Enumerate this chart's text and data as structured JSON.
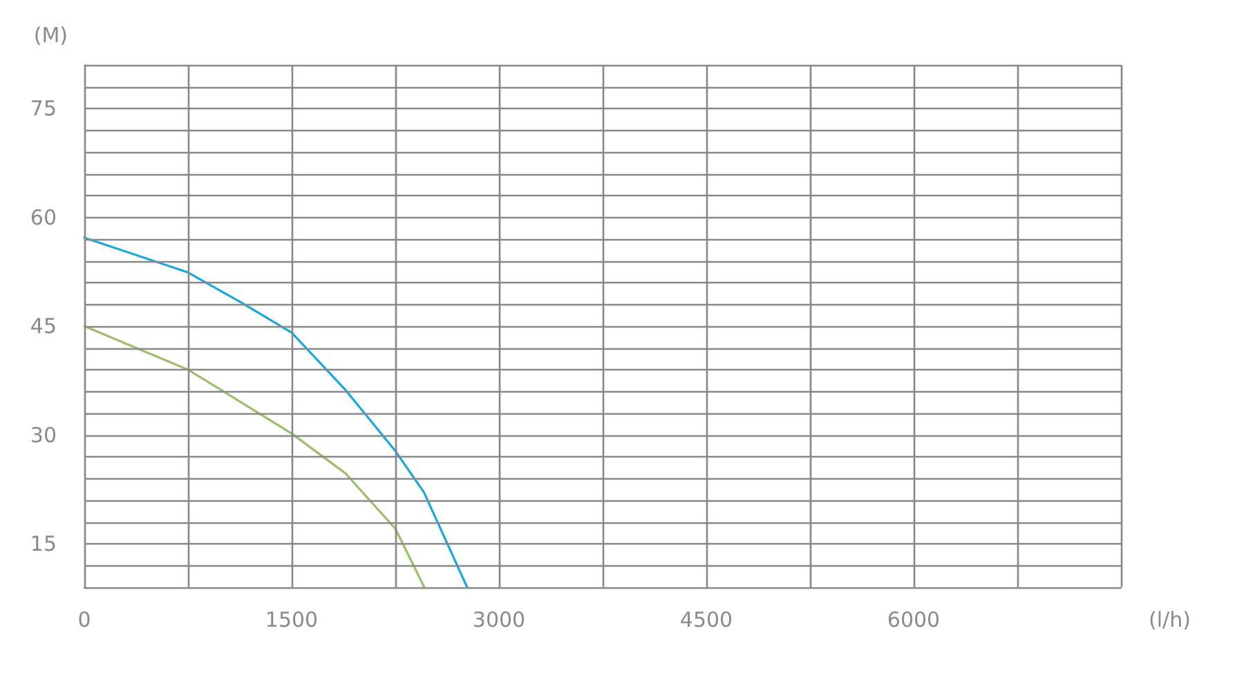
{
  "chart_data": {
    "type": "line",
    "xlabel": "(l/h)",
    "ylabel": "(M)",
    "xlim": [
      0,
      7500
    ],
    "ylim": [
      9,
      81
    ],
    "xticks": [
      0,
      {
        "value": 750,
        "label": null
      },
      1500,
      {
        "value": 2250,
        "label": null
      },
      3000,
      {
        "value": 3750,
        "label": null
      },
      4500,
      {
        "value": 5250,
        "label": null
      },
      6000,
      {
        "value": 6750,
        "label": null
      },
      {
        "value": 7500,
        "label": null
      }
    ],
    "yticks": [
      {
        "value": 9,
        "label": null
      },
      {
        "value": 12,
        "label": null
      },
      15,
      {
        "value": 18,
        "label": null
      },
      {
        "value": 21,
        "label": null
      },
      {
        "value": 24,
        "label": null
      },
      {
        "value": 27,
        "label": null
      },
      30,
      {
        "value": 33,
        "label": null
      },
      {
        "value": 36,
        "label": null
      },
      {
        "value": 39,
        "label": null
      },
      {
        "value": 42,
        "label": null
      },
      45,
      {
        "value": 48,
        "label": null
      },
      {
        "value": 51,
        "label": null
      },
      {
        "value": 54,
        "label": null
      },
      {
        "value": 57,
        "label": null
      },
      60,
      {
        "value": 63,
        "label": null
      },
      {
        "value": 66,
        "label": null
      },
      {
        "value": 69,
        "label": null
      },
      {
        "value": 72,
        "label": null
      },
      75,
      {
        "value": 78,
        "label": null
      },
      {
        "value": 81,
        "label": null
      }
    ],
    "grid": true,
    "marker": "none",
    "line_style": "solid",
    "series": [
      {
        "color": "#9bbf6b",
        "x": [
          0,
          750,
          990,
          1500,
          1890,
          2250,
          2460
        ],
        "values": [
          45.0,
          39.0,
          36.2,
          30.2,
          24.7,
          17.1,
          9
        ]
      },
      {
        "color": "#1aa7e0",
        "x": [
          0,
          750,
          1140,
          1500,
          1890,
          2250,
          2457,
          2770
        ],
        "values": [
          57.2,
          52.4,
          48.2,
          44.1,
          36.2,
          27.8,
          22.1,
          9
        ]
      }
    ]
  }
}
